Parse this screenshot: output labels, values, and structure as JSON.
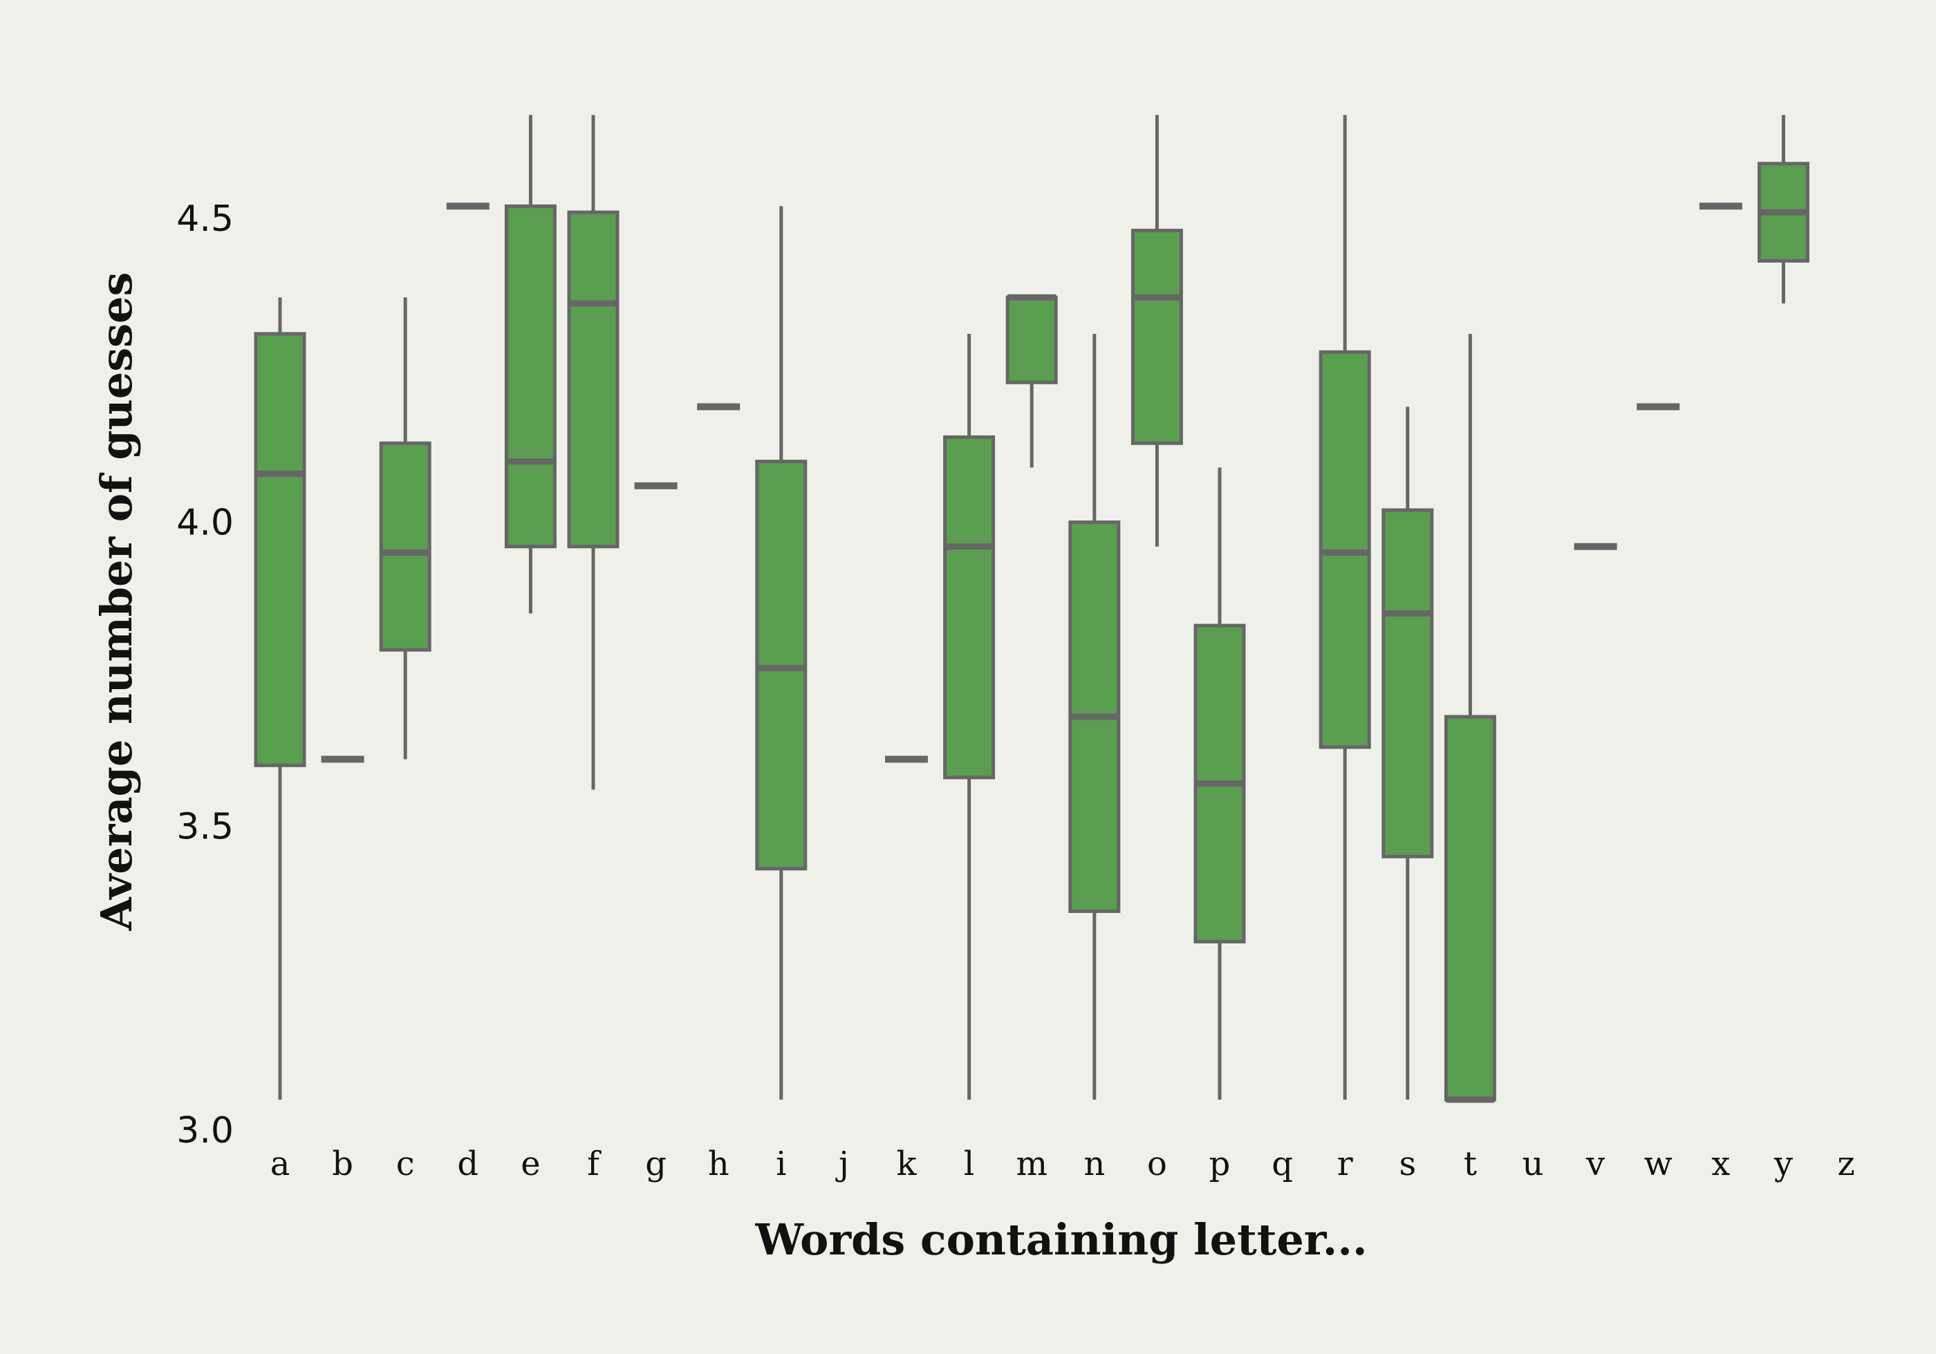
{
  "chart_data": {
    "type": "box",
    "xlabel": "Words containing letter...",
    "ylabel": "Average number of guesses",
    "ylim": [
      3.0,
      4.7
    ],
    "yticks": [
      3.0,
      3.5,
      4.0,
      4.5
    ],
    "ytick_labels": [
      "3.0",
      "3.5",
      "4.0",
      "4.5"
    ],
    "grid": false,
    "colors": {
      "box_fill": "#5a9e50",
      "box_stroke": "#666666",
      "background": "#f0f0eb"
    },
    "categories": [
      "a",
      "b",
      "c",
      "d",
      "e",
      "f",
      "g",
      "h",
      "i",
      "j",
      "k",
      "l",
      "m",
      "n",
      "o",
      "p",
      "q",
      "r",
      "s",
      "t",
      "u",
      "v",
      "w",
      "x",
      "y",
      "z"
    ],
    "boxes": [
      {
        "label": "a",
        "whisker_low": 3.05,
        "q1": 3.6,
        "median": 4.08,
        "q3": 4.31,
        "whisker_high": 4.37
      },
      {
        "label": "b",
        "whisker_low": 3.61,
        "q1": 3.61,
        "median": 3.61,
        "q3": 3.61,
        "whisker_high": 3.61
      },
      {
        "label": "c",
        "whisker_low": 3.61,
        "q1": 3.79,
        "median": 3.95,
        "q3": 4.13,
        "whisker_high": 4.37
      },
      {
        "label": "d",
        "whisker_low": 4.52,
        "q1": 4.52,
        "median": 4.52,
        "q3": 4.52,
        "whisker_high": 4.52
      },
      {
        "label": "e",
        "whisker_low": 3.85,
        "q1": 3.96,
        "median": 4.1,
        "q3": 4.52,
        "whisker_high": 4.67
      },
      {
        "label": "f",
        "whisker_low": 3.56,
        "q1": 3.96,
        "median": 4.36,
        "q3": 4.51,
        "whisker_high": 4.67
      },
      {
        "label": "g",
        "whisker_low": 4.06,
        "q1": 4.06,
        "median": 4.06,
        "q3": 4.06,
        "whisker_high": 4.06
      },
      {
        "label": "h",
        "whisker_low": 4.19,
        "q1": 4.19,
        "median": 4.19,
        "q3": 4.19,
        "whisker_high": 4.19
      },
      {
        "label": "i",
        "whisker_low": 3.05,
        "q1": 3.43,
        "median": 3.76,
        "q3": 4.1,
        "whisker_high": 4.52
      },
      {
        "label": "j"
      },
      {
        "label": "k",
        "whisker_low": 3.61,
        "q1": 3.61,
        "median": 3.61,
        "q3": 3.61,
        "whisker_high": 3.61
      },
      {
        "label": "l",
        "whisker_low": 3.05,
        "q1": 3.58,
        "median": 3.96,
        "q3": 4.14,
        "whisker_high": 4.31
      },
      {
        "label": "m",
        "whisker_low": 4.09,
        "q1": 4.23,
        "median": 4.37,
        "q3": 4.37,
        "whisker_high": 4.37
      },
      {
        "label": "n",
        "whisker_low": 3.05,
        "q1": 3.36,
        "median": 3.68,
        "q3": 4.0,
        "whisker_high": 4.31
      },
      {
        "label": "o",
        "whisker_low": 3.96,
        "q1": 4.13,
        "median": 4.37,
        "q3": 4.48,
        "whisker_high": 4.67
      },
      {
        "label": "p",
        "whisker_low": 3.05,
        "q1": 3.31,
        "median": 3.57,
        "q3": 3.83,
        "whisker_high": 4.09
      },
      {
        "label": "q"
      },
      {
        "label": "r",
        "whisker_low": 3.05,
        "q1": 3.63,
        "median": 3.95,
        "q3": 4.28,
        "whisker_high": 4.67
      },
      {
        "label": "s",
        "whisker_low": 3.05,
        "q1": 3.45,
        "median": 3.85,
        "q3": 4.02,
        "whisker_high": 4.19
      },
      {
        "label": "t",
        "whisker_low": 3.05,
        "q1": 3.05,
        "median": 3.05,
        "q3": 3.68,
        "whisker_high": 4.31
      },
      {
        "label": "u"
      },
      {
        "label": "v",
        "whisker_low": 3.96,
        "q1": 3.96,
        "median": 3.96,
        "q3": 3.96,
        "whisker_high": 3.96
      },
      {
        "label": "w",
        "whisker_low": 4.19,
        "q1": 4.19,
        "median": 4.19,
        "q3": 4.19,
        "whisker_high": 4.19
      },
      {
        "label": "x",
        "whisker_low": 4.52,
        "q1": 4.52,
        "median": 4.52,
        "q3": 4.52,
        "whisker_high": 4.52
      },
      {
        "label": "y",
        "whisker_low": 4.36,
        "q1": 4.43,
        "median": 4.51,
        "q3": 4.59,
        "whisker_high": 4.67
      },
      {
        "label": "z"
      }
    ]
  }
}
